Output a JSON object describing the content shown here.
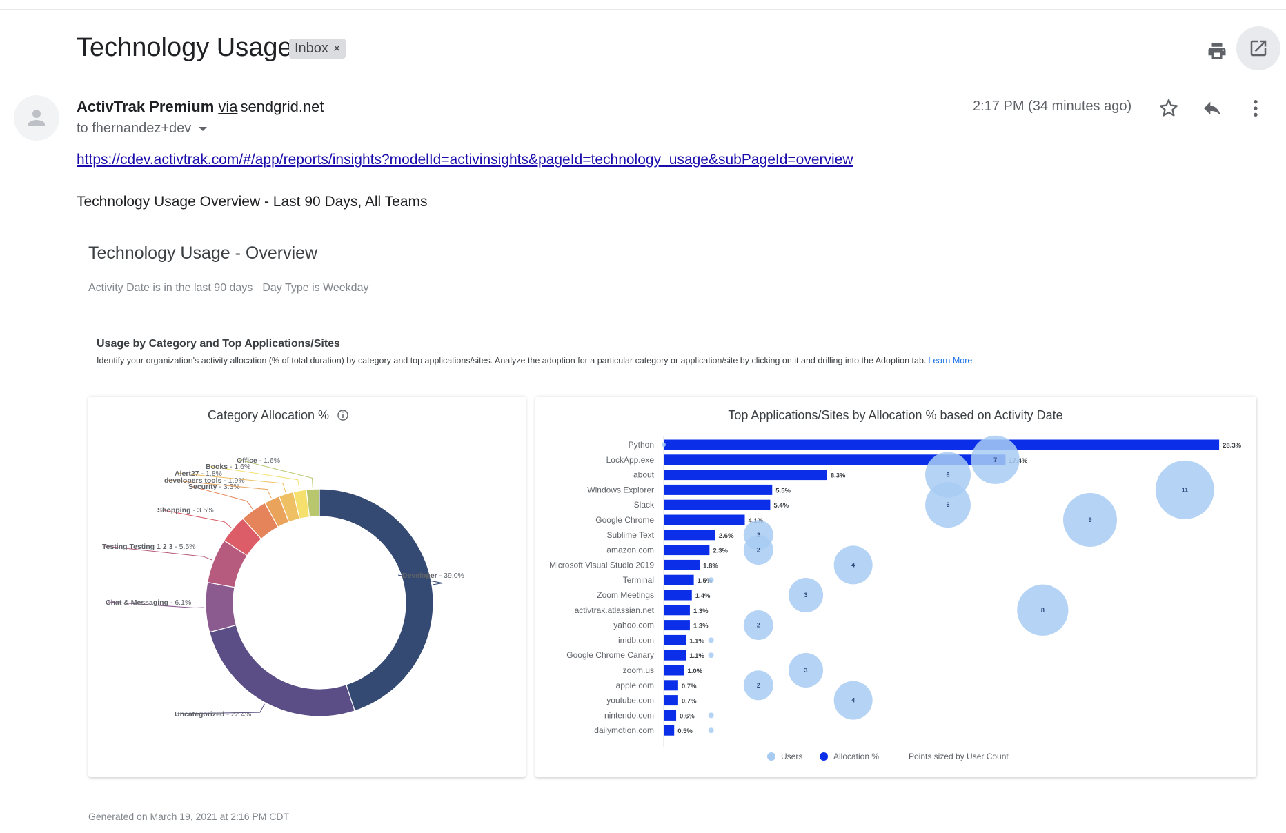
{
  "email": {
    "subject": "Technology Usage",
    "label": "Inbox",
    "label_close": "×",
    "sender_name": "ActivTrak Premium",
    "via_text": "via",
    "sender_domain": "sendgrid.net",
    "recipient": "to fhernandez+dev",
    "time": "2:17 PM (34 minutes ago)",
    "link": "https://cdev.activtrak.com/#/app/reports/insights?modelId=activinsights&pageId=technology_usage&subPageId=overview",
    "intro": "Technology Usage Overview - Last 90 Days, All Teams"
  },
  "icons": {
    "print": "print-icon",
    "popout": "open-in-new-window-icon",
    "avatar": "person-icon",
    "star": "star-icon",
    "reply": "reply-icon",
    "more": "more-vertical-icon",
    "dropdown": "chevron-down-icon",
    "info": "info-icon"
  },
  "report": {
    "title": "Technology Usage - Overview",
    "filters": [
      "Activity Date is in the last 90 days",
      "Day Type is Weekday"
    ],
    "section_title": "Usage by Category and Top Applications/Sites",
    "section_desc": "Identify your organization's activity allocation (% of total duration) by category and top applications/sites. Analyze the adoption for a particular category or application/site by clicking on it and drilling into the Adoption tab.",
    "learn_more": "Learn More",
    "footer": "Generated on March 19, 2021 at 2:16 PM CDT"
  },
  "chart_data": [
    {
      "type": "pie",
      "title": "Category Allocation %",
      "donut": true,
      "slices": [
        {
          "label": "Developer",
          "value": 39.0,
          "color": "#354a72"
        },
        {
          "label": "Uncategorized",
          "value": 22.4,
          "color": "#5b4e86"
        },
        {
          "label": "Chat & Messaging",
          "value": 6.1,
          "color": "#8b5a8f"
        },
        {
          "label": "Testing Testing 1 2 3",
          "value": 5.5,
          "color": "#b65b7d"
        },
        {
          "label": "Shopping",
          "value": 3.5,
          "color": "#dc5d68"
        },
        {
          "label": "Security",
          "value": 3.3,
          "color": "#e5845a"
        },
        {
          "label": "developers tools",
          "value": 1.9,
          "color": "#e9a35b"
        },
        {
          "label": "Alert27",
          "value": 1.8,
          "color": "#efbf63"
        },
        {
          "label": "Books",
          "value": 1.6,
          "color": "#f5e06e"
        },
        {
          "label": "Office",
          "value": 1.6,
          "color": "#b8c66e"
        }
      ]
    },
    {
      "type": "bar",
      "orientation": "horizontal",
      "title": "Top Applications/Sites by Allocation % based on Activity Date",
      "categories": [
        "Python",
        "LockApp.exe",
        "about",
        "Windows Explorer",
        "Slack",
        "Google Chrome",
        "Sublime Text",
        "amazon.com",
        "Microsoft Visual Studio 2019",
        "Terminal",
        "Zoom Meetings",
        "activtrak.atlassian.net",
        "yahoo.com",
        "imdb.com",
        "Google Chrome Canary",
        "zoom.us",
        "apple.com",
        "youtube.com",
        "nintendo.com",
        "dailymotion.com"
      ],
      "series": [
        {
          "name": "Allocation %",
          "color": "#0b2fe8",
          "values": [
            28.3,
            17.4,
            8.3,
            5.5,
            5.4,
            4.1,
            2.6,
            2.3,
            1.8,
            1.5,
            1.4,
            1.3,
            1.3,
            1.1,
            1.1,
            1.0,
            0.7,
            0.7,
            0.6,
            0.5
          ],
          "value_labels": [
            "28.3%",
            "17.4%",
            "8.3%",
            "5.5%",
            "5.4%",
            "4.1%",
            "2.6%",
            "2.3%",
            "1.8%",
            "1.5%",
            "1.4%",
            "1.3%",
            "1.3%",
            "1.1%",
            "1.1%",
            "1.0%",
            "0.7%",
            "0.7%",
            "0.6%",
            "0.5%"
          ]
        },
        {
          "name": "Users",
          "color": "#a8cbf2",
          "type": "bubble",
          "values": [
            0,
            7,
            6,
            11,
            6,
            9,
            2,
            2,
            4,
            1,
            3,
            8,
            2,
            1,
            1,
            3,
            2,
            4,
            1,
            1
          ]
        }
      ],
      "xlim": [
        0,
        29
      ],
      "users_max": 12,
      "legend": [
        "Users",
        "Allocation %"
      ],
      "note": "Points sized by User Count"
    }
  ]
}
